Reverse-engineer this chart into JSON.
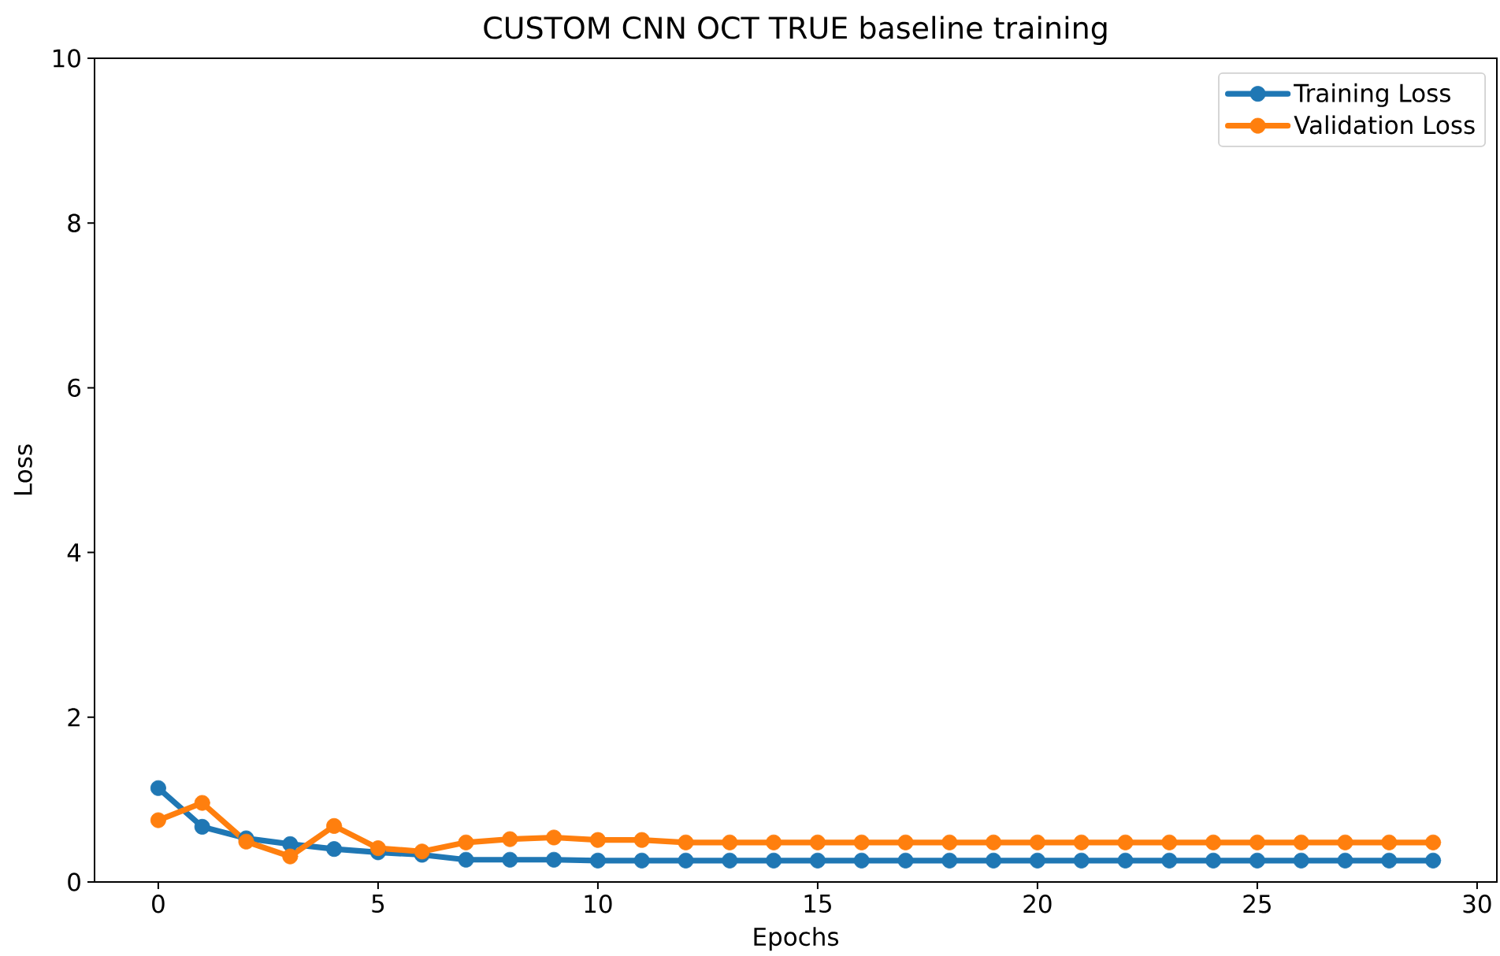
{
  "chart_data": {
    "type": "line",
    "title": "CUSTOM CNN OCT TRUE baseline training",
    "xlabel": "Epochs",
    "ylabel": "Loss",
    "x": [
      0,
      1,
      2,
      3,
      4,
      5,
      6,
      7,
      8,
      9,
      10,
      11,
      12,
      13,
      14,
      15,
      16,
      17,
      18,
      19,
      20,
      21,
      22,
      23,
      24,
      25,
      26,
      27,
      28,
      29
    ],
    "series": [
      {
        "name": "Training Loss",
        "color": "#1f77b4",
        "values": [
          1.14,
          0.67,
          0.53,
          0.46,
          0.4,
          0.36,
          0.33,
          0.27,
          0.27,
          0.27,
          0.26,
          0.26,
          0.26,
          0.26,
          0.26,
          0.26,
          0.26,
          0.26,
          0.26,
          0.26,
          0.26,
          0.26,
          0.26,
          0.26,
          0.26,
          0.26,
          0.26,
          0.26,
          0.26,
          0.26
        ]
      },
      {
        "name": "Validation Loss",
        "color": "#ff7f0e",
        "values": [
          0.75,
          0.96,
          0.49,
          0.31,
          0.68,
          0.41,
          0.37,
          0.48,
          0.52,
          0.54,
          0.51,
          0.51,
          0.48,
          0.48,
          0.48,
          0.48,
          0.48,
          0.48,
          0.48,
          0.48,
          0.48,
          0.48,
          0.48,
          0.48,
          0.48,
          0.48,
          0.48,
          0.48,
          0.48,
          0.48
        ]
      }
    ],
    "xlim": [
      -1.45,
      30.45
    ],
    "ylim": [
      0,
      10
    ],
    "xticks": [
      0,
      5,
      10,
      15,
      20,
      25,
      30
    ],
    "yticks": [
      0,
      2,
      4,
      6,
      8,
      10
    ],
    "legend": "top right",
    "marker": "circle",
    "line_style": "solid"
  }
}
